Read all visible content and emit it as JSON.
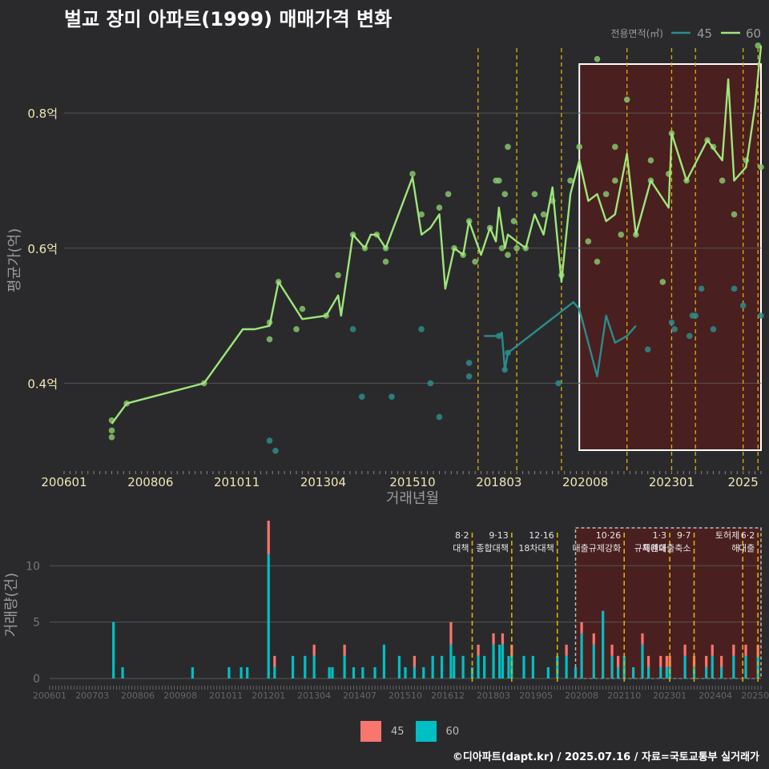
{
  "title": "벌교 장미 아파트(1999) 매매가격 변화",
  "footer": "©디아파트(dapt.kr) / 2025.07.16 / 자료=국토교통부 실거래가",
  "colors": {
    "background": "#2a2a2c",
    "s45_line": "#2b8c8c",
    "s60_line": "#9ee67a",
    "s60_point": "#86c46b",
    "bar45": "#f8766d",
    "bar60": "#00bfc4",
    "highlight_fill": "#4a1f1f",
    "event_line": "#e0b000"
  },
  "chart_data": [
    {
      "type": "line",
      "title": "벌교 장미 아파트(1999) 매매가격 변화",
      "xlabel": "거래년월",
      "ylabel": "평균가(억)",
      "legend_title": "전용면적(㎡)",
      "legend_position": "top-right",
      "x_ticks": [
        "200601",
        "200806",
        "201011",
        "201304",
        "201510",
        "201803",
        "202008",
        "202301",
        "2025"
      ],
      "y_ticks": [
        {
          "value": 0.4,
          "label": "0.4억"
        },
        {
          "value": 0.6,
          "label": "0.6억"
        },
        {
          "value": 0.8,
          "label": "0.8억"
        }
      ],
      "ylim": [
        0.27,
        0.92
      ],
      "xlim": [
        "2006-01",
        "2025-07"
      ],
      "grid": true,
      "highlight_period": [
        "2020-06",
        "2025-07"
      ],
      "event_dates": [
        "2017-08",
        "2018-09",
        "2019-12",
        "2021-10",
        "2023-01",
        "2023-09",
        "2025-01",
        "2025-06"
      ],
      "series": [
        {
          "name": "45",
          "line": [
            [
              "2017-10",
              0.47
            ],
            [
              "2018-03",
              0.47
            ],
            [
              "2018-04",
              0.475
            ],
            [
              "2018-05",
              0.42
            ],
            [
              "2018-06",
              0.445
            ],
            [
              "2020-04",
              0.52
            ],
            [
              "2020-06",
              0.51
            ],
            [
              "2020-12",
              0.41
            ],
            [
              "2021-03",
              0.5
            ],
            [
              "2021-06",
              0.46
            ],
            [
              "2021-10",
              0.47
            ],
            [
              "2022-01",
              0.485
            ]
          ],
          "points": [
            [
              "2011-10",
              0.315
            ],
            [
              "2011-12",
              0.3
            ],
            [
              "2014-02",
              0.48
            ],
            [
              "2014-05",
              0.38
            ],
            [
              "2015-03",
              0.38
            ],
            [
              "2016-01",
              0.48
            ],
            [
              "2016-04",
              0.4
            ],
            [
              "2016-07",
              0.35
            ],
            [
              "2017-05",
              0.43
            ],
            [
              "2017-05",
              0.41
            ],
            [
              "2018-03",
              0.47
            ],
            [
              "2018-05",
              0.42
            ],
            [
              "2018-06",
              0.445
            ],
            [
              "2019-11",
              0.4
            ],
            [
              "2022-05",
              0.45
            ],
            [
              "2023-01",
              0.49
            ],
            [
              "2023-02",
              0.48
            ],
            [
              "2023-07",
              0.47
            ],
            [
              "2023-08",
              0.5
            ],
            [
              "2023-09",
              0.5
            ],
            [
              "2023-11",
              0.54
            ],
            [
              "2024-03",
              0.48
            ],
            [
              "2024-10",
              0.54
            ],
            [
              "2025-01",
              0.515
            ],
            [
              "2025-07",
              0.5
            ]
          ]
        },
        {
          "name": "60",
          "line": [
            [
              "2007-05",
              0.34
            ],
            [
              "2007-10",
              0.37
            ],
            [
              "2009-12",
              0.4
            ],
            [
              "2011-01",
              0.48
            ],
            [
              "2011-05",
              0.48
            ],
            [
              "2011-10",
              0.485
            ],
            [
              "2012-01",
              0.55
            ],
            [
              "2012-09",
              0.495
            ],
            [
              "2013-05",
              0.5
            ],
            [
              "2013-09",
              0.53
            ],
            [
              "2013-10",
              0.5
            ],
            [
              "2014-02",
              0.62
            ],
            [
              "2014-06",
              0.6
            ],
            [
              "2014-08",
              0.62
            ],
            [
              "2014-10",
              0.62
            ],
            [
              "2015-01",
              0.6
            ],
            [
              "2015-10",
              0.705
            ],
            [
              "2016-01",
              0.62
            ],
            [
              "2016-04",
              0.63
            ],
            [
              "2016-07",
              0.65
            ],
            [
              "2016-09",
              0.54
            ],
            [
              "2016-12",
              0.6
            ],
            [
              "2017-03",
              0.59
            ],
            [
              "2017-05",
              0.64
            ],
            [
              "2017-09",
              0.59
            ],
            [
              "2017-12",
              0.63
            ],
            [
              "2018-02",
              0.61
            ],
            [
              "2018-03",
              0.66
            ],
            [
              "2018-05",
              0.6
            ],
            [
              "2018-06",
              0.62
            ],
            [
              "2018-09",
              0.61
            ],
            [
              "2018-12",
              0.6
            ],
            [
              "2019-03",
              0.65
            ],
            [
              "2019-06",
              0.62
            ],
            [
              "2019-09",
              0.69
            ],
            [
              "2019-12",
              0.55
            ],
            [
              "2020-03",
              0.68
            ],
            [
              "2020-06",
              0.73
            ],
            [
              "2020-09",
              0.67
            ],
            [
              "2020-12",
              0.68
            ],
            [
              "2021-03",
              0.64
            ],
            [
              "2021-06",
              0.65
            ],
            [
              "2021-10",
              0.74
            ],
            [
              "2022-01",
              0.62
            ],
            [
              "2022-06",
              0.7
            ],
            [
              "2022-12",
              0.66
            ],
            [
              "2023-01",
              0.77
            ],
            [
              "2023-06",
              0.7
            ],
            [
              "2024-01",
              0.76
            ],
            [
              "2024-06",
              0.73
            ],
            [
              "2024-08",
              0.85
            ],
            [
              "2024-10",
              0.7
            ],
            [
              "2025-02",
              0.72
            ],
            [
              "2025-05",
              0.81
            ],
            [
              "2025-07",
              0.9
            ]
          ],
          "points": [
            [
              "2007-05",
              0.345
            ],
            [
              "2007-05",
              0.33
            ],
            [
              "2007-05",
              0.32
            ],
            [
              "2007-10",
              0.37
            ],
            [
              "2009-12",
              0.4
            ],
            [
              "2011-10",
              0.49
            ],
            [
              "2011-10",
              0.465
            ],
            [
              "2012-01",
              0.55
            ],
            [
              "2012-07",
              0.48
            ],
            [
              "2012-09",
              0.51
            ],
            [
              "2013-05",
              0.5
            ],
            [
              "2013-09",
              0.56
            ],
            [
              "2014-02",
              0.62
            ],
            [
              "2014-06",
              0.6
            ],
            [
              "2014-10",
              0.62
            ],
            [
              "2015-01",
              0.6
            ],
            [
              "2015-01",
              0.58
            ],
            [
              "2015-10",
              0.71
            ],
            [
              "2016-01",
              0.65
            ],
            [
              "2016-07",
              0.66
            ],
            [
              "2016-10",
              0.68
            ],
            [
              "2016-12",
              0.6
            ],
            [
              "2017-03",
              0.59
            ],
            [
              "2017-05",
              0.64
            ],
            [
              "2017-07",
              0.58
            ],
            [
              "2017-12",
              0.63
            ],
            [
              "2018-02",
              0.7
            ],
            [
              "2018-03",
              0.7
            ],
            [
              "2018-04",
              0.6
            ],
            [
              "2018-05",
              0.68
            ],
            [
              "2018-06",
              0.75
            ],
            [
              "2018-06",
              0.59
            ],
            [
              "2018-08",
              0.64
            ],
            [
              "2018-09",
              0.6
            ],
            [
              "2018-12",
              0.6
            ],
            [
              "2019-03",
              0.68
            ],
            [
              "2019-06",
              0.65
            ],
            [
              "2019-09",
              0.67
            ],
            [
              "2019-12",
              0.56
            ],
            [
              "2020-03",
              0.7
            ],
            [
              "2020-06",
              0.75
            ],
            [
              "2020-09",
              0.61
            ],
            [
              "2020-12",
              0.88
            ],
            [
              "2020-12",
              0.58
            ],
            [
              "2021-03",
              0.68
            ],
            [
              "2021-06",
              0.7
            ],
            [
              "2021-06",
              0.75
            ],
            [
              "2021-08",
              0.62
            ],
            [
              "2021-10",
              0.82
            ],
            [
              "2022-01",
              0.62
            ],
            [
              "2022-06",
              0.73
            ],
            [
              "2022-06",
              0.7
            ],
            [
              "2022-10",
              0.55
            ],
            [
              "2022-12",
              0.71
            ],
            [
              "2023-01",
              0.77
            ],
            [
              "2023-06",
              0.7
            ],
            [
              "2024-01",
              0.76
            ],
            [
              "2024-03",
              0.75
            ],
            [
              "2024-06",
              0.7
            ],
            [
              "2024-10",
              0.65
            ],
            [
              "2025-02",
              0.73
            ],
            [
              "2025-06",
              0.9
            ],
            [
              "2025-07",
              0.72
            ]
          ]
        }
      ]
    },
    {
      "type": "bar",
      "stacked": true,
      "ylabel": "거래량(건)",
      "ylim": [
        0,
        14
      ],
      "y_ticks": [
        0,
        5,
        10
      ],
      "x_ticks": [
        "200601",
        "200703",
        "200806",
        "200908",
        "201011",
        "201201",
        "201304",
        "201407",
        "201510",
        "201612",
        "201803",
        "201905",
        "202008",
        "202110",
        "202301",
        "202404",
        "202506"
      ],
      "legend": [
        "45",
        "60"
      ],
      "legend_position": "bottom",
      "events": [
        {
          "date": "2017-08",
          "label": "8·2 대책"
        },
        {
          "date": "2018-09",
          "label": "9·13 종합대책"
        },
        {
          "date": "2019-12",
          "label": "12·16 18차대책"
        },
        {
          "date": "2021-10",
          "label": "10·26 대출규제강화"
        },
        {
          "date": "2023-01",
          "label": "1·3 규제완화"
        },
        {
          "date": "2023-09",
          "label": "9·7 특례대출축소"
        },
        {
          "date": "2025-01",
          "label": "토허제 해"
        },
        {
          "date": "2025-06",
          "label": "6·2 대출"
        }
      ],
      "months": [
        "2007-10",
        "2008-01",
        "2009-12",
        "2010-12",
        "2011-04",
        "2011-06",
        "2012-01",
        "2012-03",
        "2012-09",
        "2013-01",
        "2013-04",
        "2013-09",
        "2013-10",
        "2014-02",
        "2014-05",
        "2014-08",
        "2014-12",
        "2015-03",
        "2015-08",
        "2015-10",
        "2016-01",
        "2016-04",
        "2016-07",
        "2016-10",
        "2017-01",
        "2017-02",
        "2017-05",
        "2017-08",
        "2017-10",
        "2017-12",
        "2018-03",
        "2018-05",
        "2018-06",
        "2018-08",
        "2018-09",
        "2019-01",
        "2019-04",
        "2019-09",
        "2019-12",
        "2020-03",
        "2020-06",
        "2020-08",
        "2020-12",
        "2021-03",
        "2021-06",
        "2021-08",
        "2021-10",
        "2022-01",
        "2022-04",
        "2022-06",
        "2022-10",
        "2022-12",
        "2023-01",
        "2023-06",
        "2023-09",
        "2024-01",
        "2024-03",
        "2024-06",
        "2024-10",
        "2025-02",
        "2025-06"
      ],
      "series": [
        {
          "name": "45",
          "values": [
            0,
            0,
            0,
            0,
            0,
            0,
            3,
            1,
            0,
            0,
            1,
            0,
            0,
            1,
            0,
            0,
            0,
            0,
            0,
            0,
            1,
            0,
            0,
            0,
            2,
            0,
            0,
            0,
            1,
            0,
            1,
            0,
            1,
            0,
            1,
            0,
            0,
            0,
            0,
            1,
            0,
            1,
            1,
            0,
            1,
            1,
            0,
            0,
            1,
            1,
            1,
            1,
            1,
            1,
            1,
            1,
            1,
            1,
            1,
            1,
            1
          ]
        },
        {
          "name": "60",
          "values": [
            5,
            1,
            1,
            1,
            1,
            1,
            11,
            1,
            2,
            2,
            2,
            1,
            1,
            2,
            1,
            1,
            1,
            3,
            2,
            1,
            1,
            1,
            2,
            2,
            3,
            2,
            2,
            1,
            2,
            2,
            3,
            3,
            3,
            2,
            2,
            2,
            2,
            1,
            2,
            2,
            1,
            4,
            3,
            6,
            2,
            1,
            2,
            1,
            3,
            1,
            1,
            1,
            1,
            2,
            1,
            1,
            2,
            1,
            2,
            2,
            2
          ]
        }
      ]
    }
  ]
}
